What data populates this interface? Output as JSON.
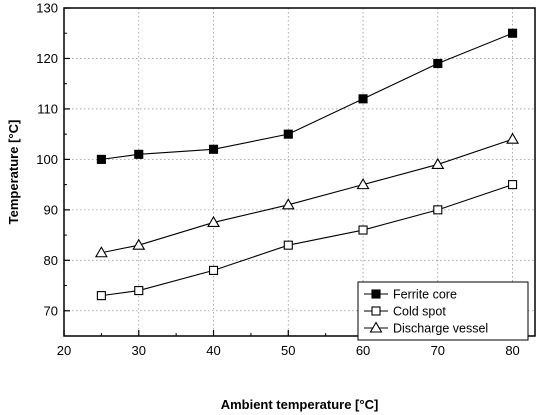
{
  "chart_data": {
    "type": "line",
    "title": "",
    "xlabel": "Ambient temperature [°C]",
    "ylabel": "Temperature [°C]",
    "xlim": [
      20,
      83
    ],
    "ylim": [
      65,
      130
    ],
    "xticks": [
      20,
      30,
      40,
      50,
      60,
      70,
      80
    ],
    "yticks": [
      70,
      80,
      90,
      100,
      110,
      120,
      130
    ],
    "grid": true,
    "legend_position": "bottom-right",
    "x": [
      25,
      30,
      40,
      50,
      60,
      70,
      80
    ],
    "series": [
      {
        "name": "Ferrite core",
        "marker": "filled-square",
        "values": [
          100,
          101,
          102,
          105,
          112,
          119,
          125
        ]
      },
      {
        "name": "Cold spot",
        "marker": "open-square",
        "values": [
          73,
          74,
          78,
          83,
          86,
          90,
          95
        ]
      },
      {
        "name": "Discharge vessel",
        "marker": "open-triangle",
        "values": [
          81.5,
          83,
          87.5,
          91,
          95,
          99,
          104
        ]
      }
    ]
  }
}
